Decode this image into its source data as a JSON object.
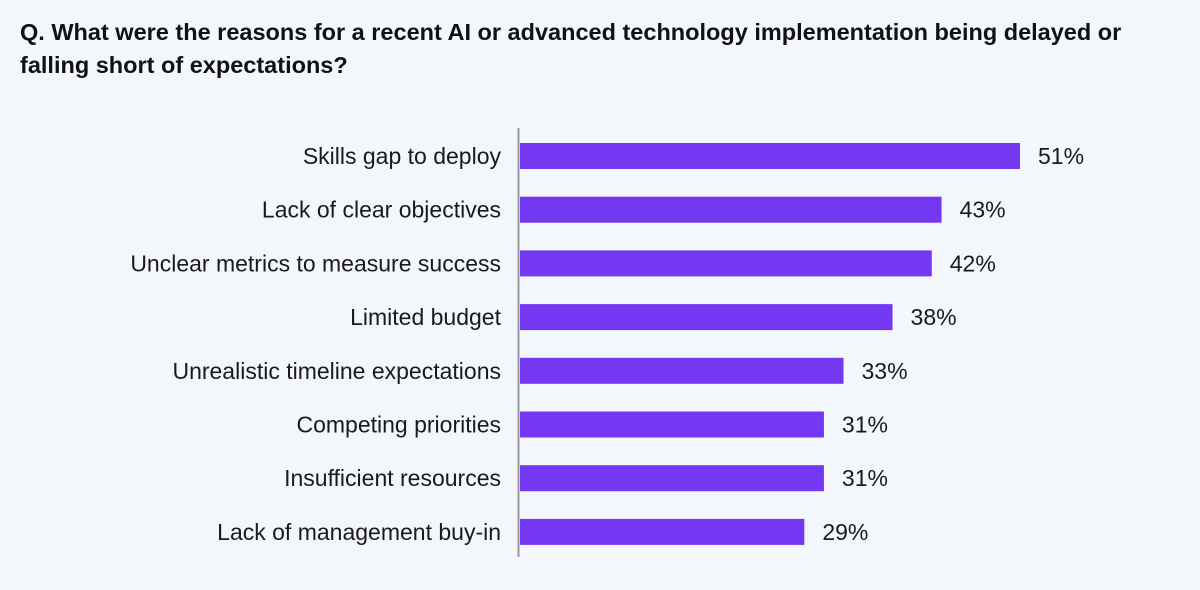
{
  "chart_data": {
    "type": "bar",
    "orientation": "horizontal",
    "title": "Q. What were the reasons for a recent AI or advanced technology implementation being delayed or falling short of expectations?",
    "categories": [
      "Skills gap to deploy",
      "Lack of clear objectives",
      "Unclear metrics to measure success",
      "Limited budget",
      "Unrealistic timeline expectations",
      "Competing priorities",
      "Insufficient resources",
      "Lack of management buy-in"
    ],
    "values": [
      51,
      43,
      42,
      38,
      33,
      31,
      31,
      29
    ],
    "value_labels": [
      "51%",
      "43%",
      "42%",
      "38%",
      "33%",
      "31%",
      "31%",
      "29%"
    ],
    "xlabel": "",
    "ylabel": "",
    "xlim": [
      0,
      51
    ],
    "grid": false,
    "legend": "none",
    "colors": {
      "bar": "#7438f2",
      "axis": "#9a9a9a",
      "background": "#f3f6fa"
    }
  }
}
